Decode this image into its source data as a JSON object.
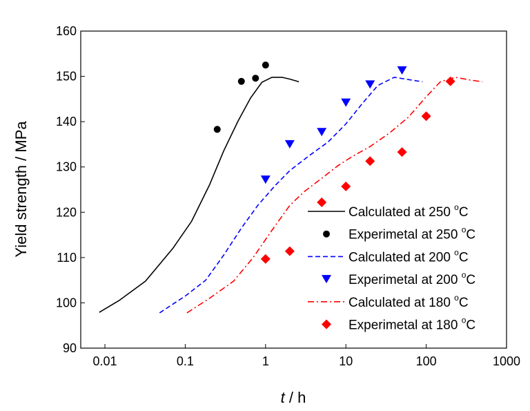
{
  "chart_data": {
    "type": "line",
    "xlabel_italic": "t",
    "xlabel_unit": " / h",
    "ylabel": "Yield strength / MPa",
    "x_scale": "log",
    "xlim": [
      0.005,
      1000
    ],
    "ylim": [
      90,
      160
    ],
    "x_ticks": [
      0.01,
      0.1,
      1,
      10,
      100,
      1000
    ],
    "x_tick_labels": [
      "0.01",
      "0.1",
      "1",
      "10",
      "100",
      "1000"
    ],
    "y_ticks": [
      90,
      100,
      110,
      120,
      130,
      140,
      150,
      160
    ],
    "y_tick_labels": [
      "90",
      "100",
      "110",
      "120",
      "130",
      "140",
      "150",
      "160"
    ],
    "legend_position": "lower-right",
    "series": [
      {
        "name": "Calculated at 250 °C",
        "label_main": "Calculated at 250 ",
        "label_sup": "o",
        "label_end": "C",
        "kind": "line",
        "color": "#000000",
        "dash": "solid",
        "x": [
          0.0085,
          0.015,
          0.032,
          0.07,
          0.12,
          0.2,
          0.3,
          0.45,
          0.65,
          0.9,
          1.2,
          1.6,
          2.0,
          2.6
        ],
        "y": [
          97.9,
          100.5,
          104.8,
          112.0,
          118.0,
          126.0,
          133.5,
          140.0,
          145.2,
          148.7,
          149.8,
          149.8,
          149.4,
          148.8
        ]
      },
      {
        "name": "Experimetal at 250 °C",
        "label_main": "Experimetal at 250 ",
        "label_sup": "o",
        "label_end": "C",
        "kind": "scatter",
        "marker": "circle",
        "color": "#000000",
        "x": [
          0.25,
          0.5,
          0.75,
          1.0
        ],
        "y": [
          138.3,
          148.9,
          149.6,
          152.5
        ]
      },
      {
        "name": "Calculated at 200 °C",
        "label_main": "Calculated at 200 ",
        "label_sup": "o",
        "label_end": "C",
        "kind": "line",
        "color": "#0000ff",
        "dash": "dashed",
        "x": [
          0.048,
          0.1,
          0.18,
          0.3,
          0.5,
          0.8,
          1.3,
          2.0,
          3.5,
          6.0,
          10.0,
          16.0,
          25.0,
          40.0,
          60.0,
          90.0
        ],
        "y": [
          97.8,
          101.5,
          105.0,
          110.5,
          116.5,
          121.5,
          125.8,
          129.2,
          132.5,
          135.5,
          139.5,
          144.0,
          148.0,
          149.8,
          149.3,
          148.8
        ]
      },
      {
        "name": "Experimetal at 200 °C",
        "label_main": "Experimetal at 200 ",
        "label_sup": "o",
        "label_end": "C",
        "kind": "scatter",
        "marker": "triangle-down",
        "color": "#0000ff",
        "x": [
          1.0,
          2.0,
          5.0,
          10.0,
          20.0,
          50.0
        ],
        "y": [
          127.2,
          135.0,
          137.7,
          144.2,
          148.2,
          151.3
        ]
      },
      {
        "name": "Calculated at 180 °C",
        "label_main": "Calculated at 180 ",
        "label_sup": "o",
        "label_end": "C",
        "kind": "line",
        "color": "#ff0000",
        "dash": "dashdot",
        "x": [
          0.105,
          0.2,
          0.4,
          0.7,
          1.2,
          2.0,
          3.0,
          5.0,
          8.0,
          12.0,
          20.0,
          35.0,
          60.0,
          100.0,
          150.0,
          230.0,
          350.0,
          500.0
        ],
        "y": [
          97.8,
          101.0,
          104.8,
          110.0,
          116.0,
          121.5,
          124.5,
          127.5,
          130.3,
          132.3,
          134.5,
          137.5,
          141.0,
          145.5,
          148.8,
          149.8,
          149.2,
          148.8
        ]
      },
      {
        "name": "Experimetal at 180 °C",
        "label_main": "Experimetal at 180 ",
        "label_sup": "o",
        "label_end": "C",
        "kind": "scatter",
        "marker": "diamond",
        "color": "#ff0000",
        "x": [
          1.0,
          2.0,
          5.0,
          10.0,
          20.0,
          50.0,
          100.0,
          200.0
        ],
        "y": [
          109.7,
          111.4,
          122.2,
          125.7,
          131.3,
          133.3,
          141.2,
          148.9
        ]
      }
    ]
  }
}
